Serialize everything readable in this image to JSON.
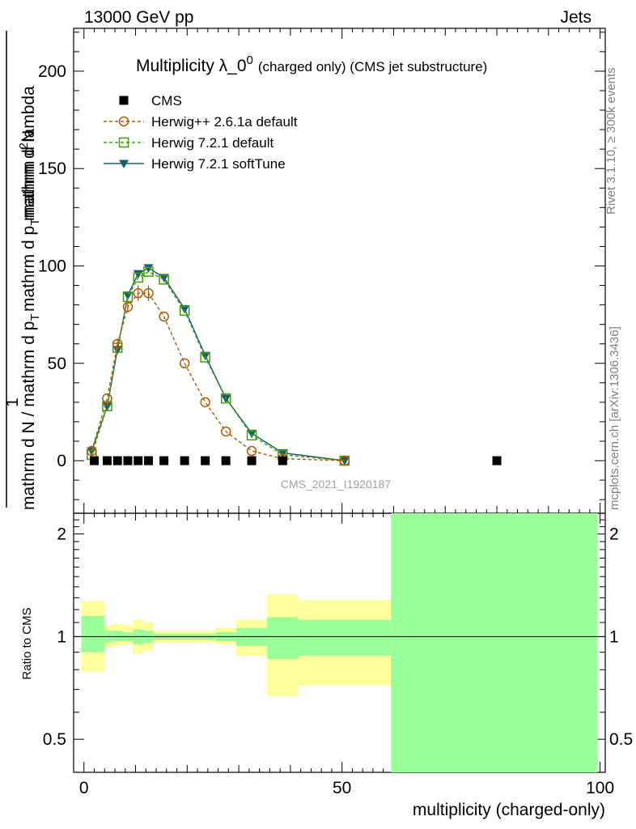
{
  "header": {
    "left": "13000 GeV pp",
    "right": "Jets"
  },
  "side_labels": {
    "rivet": "Rivet 3.1.10, ≥ 300k events",
    "mcplots": "mcplots.cern.ch [arXiv:1306.3436]"
  },
  "colors": {
    "cms": "#000000",
    "herwigpp": "#b35900",
    "herwig721": "#40a000",
    "softtune": "#1a5b73",
    "band_inner": "#99ff99",
    "band_outer": "#ffff99"
  },
  "chart_data": [
    {
      "type": "scatter",
      "title": "Multiplicity λ_0",
      "title_sup": "0",
      "title_small": "(charged only) (CMS jet substructure)",
      "xlabel": "multiplicity (charged-only)",
      "ylabel_main": "mathrm d N / mathrm d p_T mathrm d p_T mathrm d lambda",
      "ylabel_num": "1",
      "ylabel_den": "mathrm d N / mathrm d p",
      "ylabel_den_sub": "T",
      "ylabel_top": "mathrm d",
      "ylabel_top_sup": "2",
      "ylabel_top2": "N",
      "ylabel_frac": "mathrm d p",
      "ylabel_frac_sub": "T",
      "ylabel_frac2": "mathrm d lambda",
      "xlim": [
        -2,
        101
      ],
      "ylim": [
        -27,
        222
      ],
      "yticks": [
        0,
        50,
        100,
        150,
        200
      ],
      "xticks": [
        0,
        50,
        100
      ],
      "watermark": "CMS_2021_I1920187",
      "legend_position": "top-left",
      "series": [
        {
          "name": "CMS",
          "style": "square",
          "x": [
            2,
            4.5,
            6.5,
            8.5,
            10.5,
            12.5,
            15.5,
            19.5,
            23.5,
            27.5,
            32.5,
            38.5,
            80
          ],
          "y": [
            0,
            0,
            0,
            0,
            0,
            0,
            0,
            0,
            0,
            0,
            0,
            0,
            0
          ]
        },
        {
          "name": "Herwig++ 2.6.1a default",
          "style": "circle-dashed",
          "x": [
            1.5,
            4.5,
            6.5,
            8.5,
            10.5,
            12.5,
            15.5,
            19.5,
            23.5,
            27.5,
            32.5,
            38.5,
            50.5
          ],
          "y": [
            5,
            32,
            60,
            79,
            86,
            86,
            74,
            50,
            30,
            15,
            5,
            1,
            0
          ],
          "err": [
            0,
            0,
            2,
            3,
            4,
            4,
            0,
            0,
            0,
            0,
            0,
            0,
            0
          ]
        },
        {
          "name": "Herwig 7.2.1 default",
          "style": "opensquare-dashed",
          "x": [
            1.5,
            4.5,
            6.5,
            8.5,
            10.5,
            12.5,
            15.5,
            19.5,
            23.5,
            27.5,
            32.5,
            38.5,
            50.5
          ],
          "y": [
            3,
            28,
            58,
            84,
            94,
            97,
            93,
            77,
            53,
            32,
            13,
            3,
            0
          ]
        },
        {
          "name": "Herwig 7.2.1 softTune",
          "style": "triangle-solid",
          "x": [
            1.5,
            4.5,
            6.5,
            8.5,
            10.5,
            12.5,
            15.5,
            19.5,
            23.5,
            27.5,
            32.5,
            38.5,
            50.5
          ],
          "y": [
            5,
            28,
            57,
            85,
            96,
            99,
            94,
            78,
            54,
            32,
            14,
            4,
            0
          ]
        }
      ]
    },
    {
      "type": "area",
      "ylabel": "Ratio to CMS",
      "ylim": [
        0.4,
        2.3
      ],
      "yscale": "log",
      "yticks": [
        0.5,
        1,
        2
      ],
      "ytick_labels": [
        "0.5",
        "1",
        "2"
      ],
      "xticks": [
        0,
        50,
        100
      ],
      "xtick_labels": [
        "0",
        "50",
        "100"
      ],
      "reference_line": 1,
      "bins": [
        {
          "x0": -0.5,
          "x1": 4,
          "in_lo": 0.9,
          "in_hi": 1.15,
          "out_lo": 0.79,
          "out_hi": 1.27
        },
        {
          "x0": 4,
          "x1": 5.5,
          "in_lo": 0.96,
          "in_hi": 1.04,
          "out_lo": 0.93,
          "out_hi": 1.08
        },
        {
          "x0": 5.5,
          "x1": 7.5,
          "in_lo": 0.97,
          "in_hi": 1.04,
          "out_lo": 0.94,
          "out_hi": 1.09
        },
        {
          "x0": 7.5,
          "x1": 9.5,
          "in_lo": 0.97,
          "in_hi": 1.03,
          "out_lo": 0.95,
          "out_hi": 1.08
        },
        {
          "x0": 9.5,
          "x1": 11.5,
          "in_lo": 0.95,
          "in_hi": 1.05,
          "out_lo": 0.89,
          "out_hi": 1.12
        },
        {
          "x0": 11.5,
          "x1": 13.5,
          "in_lo": 0.96,
          "in_hi": 1.04,
          "out_lo": 0.91,
          "out_hi": 1.1
        },
        {
          "x0": 13.5,
          "x1": 17.5,
          "in_lo": 0.98,
          "in_hi": 1.02,
          "out_lo": 0.96,
          "out_hi": 1.04
        },
        {
          "x0": 17.5,
          "x1": 21.5,
          "in_lo": 0.98,
          "in_hi": 1.02,
          "out_lo": 0.96,
          "out_hi": 1.04
        },
        {
          "x0": 21.5,
          "x1": 25.5,
          "in_lo": 0.98,
          "in_hi": 1.02,
          "out_lo": 0.96,
          "out_hi": 1.04
        },
        {
          "x0": 25.5,
          "x1": 29.5,
          "in_lo": 0.97,
          "in_hi": 1.03,
          "out_lo": 0.95,
          "out_hi": 1.06
        },
        {
          "x0": 29.5,
          "x1": 35.5,
          "in_lo": 0.94,
          "in_hi": 1.06,
          "out_lo": 0.88,
          "out_hi": 1.12
        },
        {
          "x0": 35.5,
          "x1": 41.5,
          "in_lo": 0.86,
          "in_hi": 1.14,
          "out_lo": 0.67,
          "out_hi": 1.33
        },
        {
          "x0": 41.5,
          "x1": 59.5,
          "in_lo": 0.88,
          "in_hi": 1.12,
          "out_lo": 0.72,
          "out_hi": 1.28
        },
        {
          "x0": 59.5,
          "x1": 99.5,
          "in_lo": 0.4,
          "in_hi": 2.3,
          "out_lo": 0.4,
          "out_hi": 2.3
        }
      ]
    }
  ]
}
